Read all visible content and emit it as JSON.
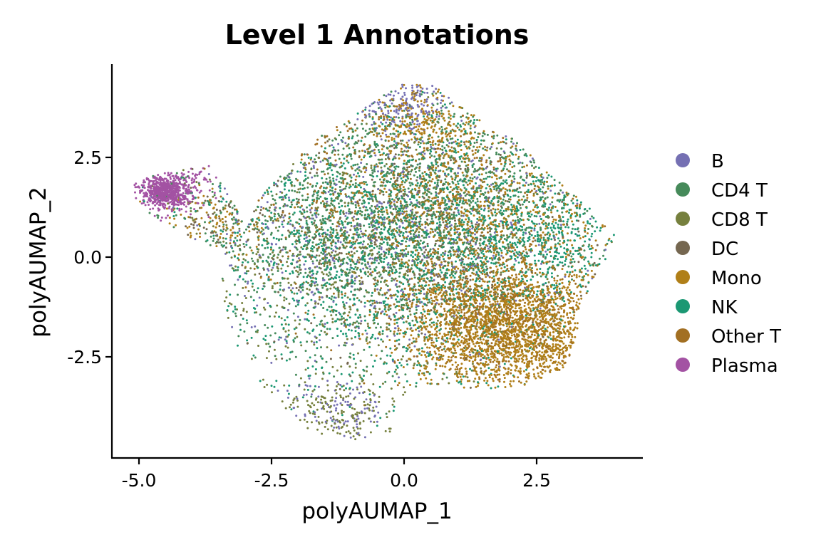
{
  "chart_data": {
    "type": "scatter",
    "title": "Level 1 Annotations",
    "xlabel": "polyAUMAP_1",
    "ylabel": "polyAUMAP_2",
    "xlim": [
      -5.4,
      4.4
    ],
    "ylim": [
      -5.0,
      4.8
    ],
    "x_ticks": [
      -5.0,
      -2.5,
      0.0,
      2.5
    ],
    "x_tick_labels": [
      "-5.0",
      "-2.5",
      "0.0",
      "2.5"
    ],
    "y_ticks": [
      -2.5,
      0.0,
      2.5
    ],
    "y_tick_labels": [
      "-2.5",
      "0.0",
      "2.5"
    ],
    "grid": false,
    "legend_position": "right",
    "series": [
      {
        "name": "B",
        "color": "#7570B3",
        "clusters": [
          {
            "cx": 0.0,
            "cy": 3.8,
            "sx": 0.5,
            "sy": 0.35,
            "n": 150
          },
          {
            "cx": -0.5,
            "cy": 0.5,
            "sx": 1.8,
            "sy": 1.6,
            "n": 650
          },
          {
            "cx": -1.2,
            "cy": -3.8,
            "sx": 0.5,
            "sy": 0.4,
            "n": 90
          }
        ]
      },
      {
        "name": "CD4 T",
        "color": "#468A5A",
        "clusters": [
          {
            "cx": -0.5,
            "cy": 1.0,
            "sx": 1.9,
            "sy": 1.7,
            "n": 1500
          },
          {
            "cx": 1.5,
            "cy": 1.5,
            "sx": 1.2,
            "sy": 1.0,
            "n": 500
          }
        ]
      },
      {
        "name": "CD8 T",
        "color": "#76803E",
        "clusters": [
          {
            "cx": -0.8,
            "cy": 0.0,
            "sx": 1.8,
            "sy": 1.6,
            "n": 900
          },
          {
            "cx": -1.3,
            "cy": -3.9,
            "sx": 0.6,
            "sy": 0.45,
            "n": 170
          }
        ]
      },
      {
        "name": "DC",
        "color": "#756750",
        "clusters": [
          {
            "cx": 0.3,
            "cy": 0.5,
            "sx": 1.8,
            "sy": 1.6,
            "n": 450
          },
          {
            "cx": -3.7,
            "cy": 0.9,
            "sx": 0.5,
            "sy": 0.35,
            "n": 50
          }
        ]
      },
      {
        "name": "Mono",
        "color": "#B07F18",
        "clusters": [
          {
            "cx": 2.0,
            "cy": -1.8,
            "sx": 0.95,
            "sy": 0.75,
            "n": 1900
          },
          {
            "cx": 1.5,
            "cy": 1.2,
            "sx": 1.3,
            "sy": 1.1,
            "n": 700
          },
          {
            "cx": 0.3,
            "cy": 3.3,
            "sx": 0.6,
            "sy": 0.5,
            "n": 250
          },
          {
            "cx": -3.6,
            "cy": 0.7,
            "sx": 0.6,
            "sy": 0.4,
            "n": 90
          }
        ]
      },
      {
        "name": "NK",
        "color": "#1B9873",
        "clusters": [
          {
            "cx": -0.2,
            "cy": 0.3,
            "sx": 1.9,
            "sy": 1.8,
            "n": 1500
          },
          {
            "cx": 2.6,
            "cy": 0.5,
            "sx": 0.8,
            "sy": 0.7,
            "n": 350
          }
        ]
      },
      {
        "name": "Other T",
        "color": "#A26F22",
        "clusters": [
          {
            "cx": 1.8,
            "cy": -1.5,
            "sx": 1.0,
            "sy": 0.8,
            "n": 700
          },
          {
            "cx": 0.0,
            "cy": 1.5,
            "sx": 1.7,
            "sy": 1.4,
            "n": 500
          }
        ]
      },
      {
        "name": "Plasma",
        "color": "#A352A3",
        "clusters": [
          {
            "cx": -4.5,
            "cy": 1.6,
            "sx": 0.23,
            "sy": 0.2,
            "n": 650
          },
          {
            "cx": -4.2,
            "cy": 1.8,
            "sx": 0.35,
            "sy": 0.3,
            "n": 110
          }
        ]
      }
    ]
  }
}
